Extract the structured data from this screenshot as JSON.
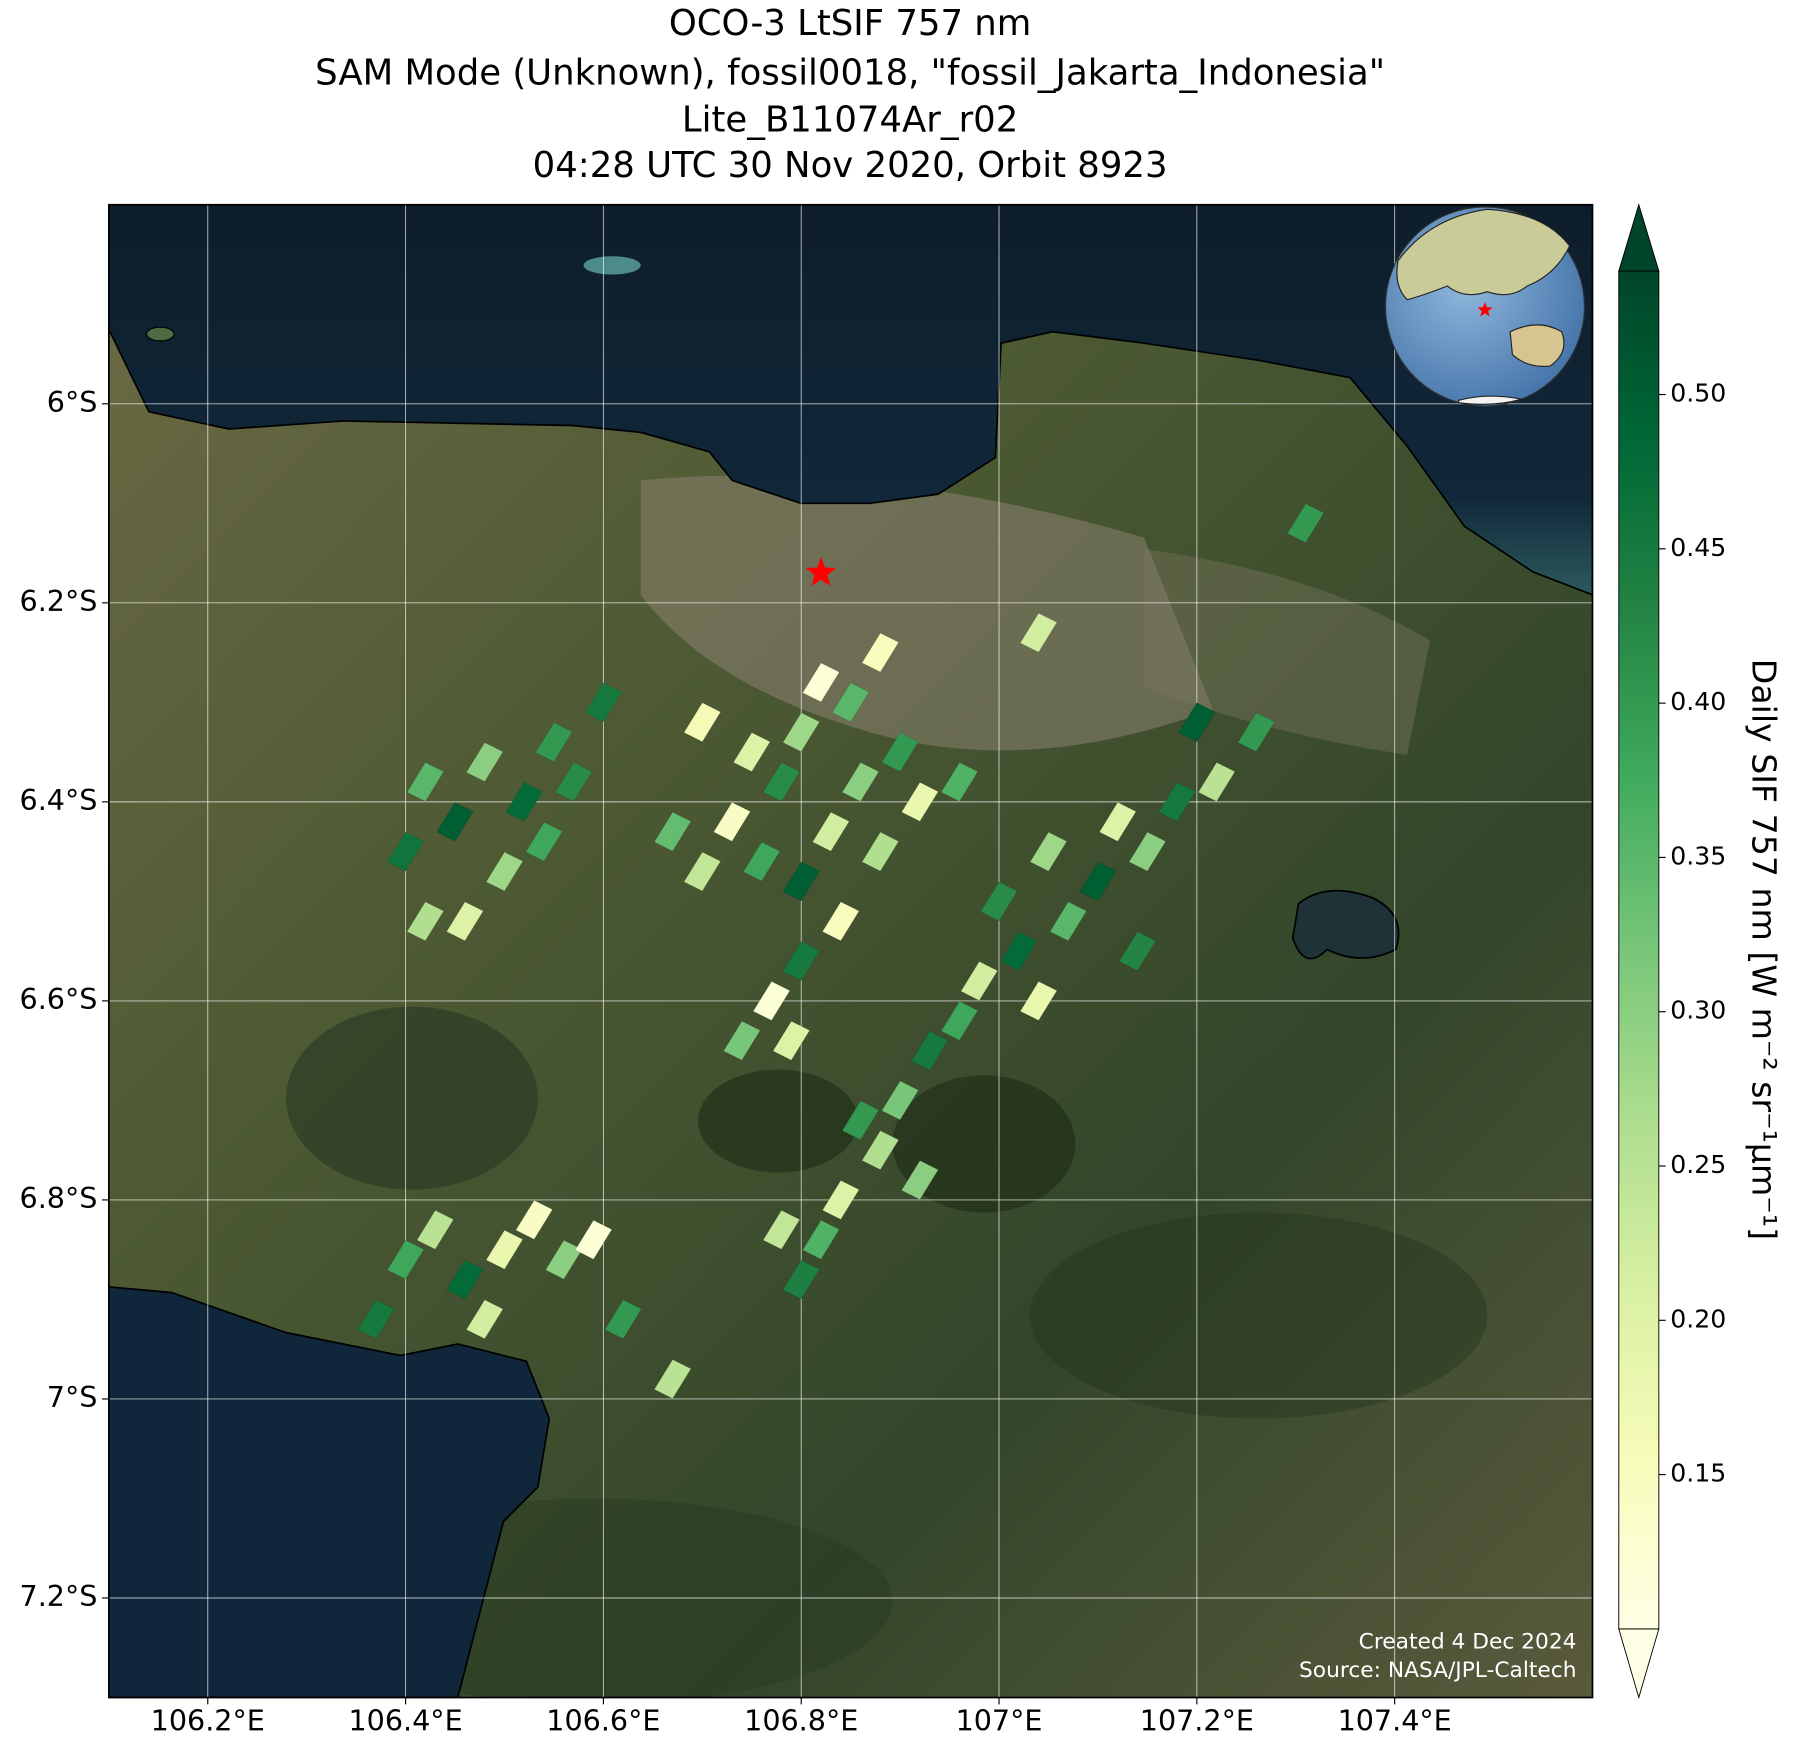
{
  "chart_data": {
    "type": "map",
    "title": [
      "OCO-3 LtSIF 757 nm",
      "SAM Mode (Unknown), fossil0018, \"fossil_Jakarta_Indonesia\"",
      "Lite_B11074Ar_r02",
      "04:28 UTC 30 Nov 2020, Orbit 8923"
    ],
    "xlim": [
      106.1,
      107.6
    ],
    "ylim": [
      -7.3,
      -5.8
    ],
    "xticks": [
      {
        "value": 106.2,
        "label": "106.2°E"
      },
      {
        "value": 106.4,
        "label": "106.4°E"
      },
      {
        "value": 106.6,
        "label": "106.6°E"
      },
      {
        "value": 106.8,
        "label": "106.8°E"
      },
      {
        "value": 107,
        "label": "107°E"
      },
      {
        "value": 107.2,
        "label": "107.2°E"
      },
      {
        "value": 107.4,
        "label": "107.4°E"
      }
    ],
    "yticks": [
      {
        "value": -6,
        "label": "6°S"
      },
      {
        "value": -6.2,
        "label": "6.2°S"
      },
      {
        "value": -6.4,
        "label": "6.4°S"
      },
      {
        "value": -6.6,
        "label": "6.6°S"
      },
      {
        "value": -6.8,
        "label": "6.8°S"
      },
      {
        "value": -7,
        "label": "7°S"
      },
      {
        "value": -7.2,
        "label": "7.2°S"
      }
    ],
    "grid": true,
    "target": {
      "lon": 106.82,
      "lat": -6.17,
      "color": "#ff0000"
    },
    "soundings": {
      "lon": [
        107.26,
        107.22,
        107.18,
        107.15,
        107.12,
        107.1,
        107.07,
        107.05,
        107.02,
        107.0,
        106.98,
        106.96,
        107.04,
        106.93,
        106.9,
        106.88,
        106.86,
        106.84,
        106.82,
        106.8,
        106.78,
        107.2,
        107.14,
        106.92,
        106.88,
        106.85,
        106.82,
        106.8,
        106.78,
        106.75,
        106.73,
        106.76,
        106.8,
        106.83,
        106.86,
        106.9,
        106.92,
        106.88,
        106.84,
        106.8,
        106.77,
        106.74,
        106.79,
        106.7,
        106.67,
        106.96,
        106.7,
        106.6,
        106.55,
        106.52,
        106.48,
        106.45,
        106.42,
        106.4,
        106.5,
        106.54,
        106.46,
        106.42,
        106.57,
        106.4,
        106.43,
        106.46,
        106.5,
        106.53,
        106.56,
        106.59,
        106.62,
        106.37,
        106.48,
        107.31,
        107.04,
        106.67
      ],
      "lat": [
        -6.33,
        -6.38,
        -6.4,
        -6.45,
        -6.42,
        -6.48,
        -6.52,
        -6.45,
        -6.55,
        -6.5,
        -6.58,
        -6.62,
        -6.6,
        -6.65,
        -6.7,
        -6.75,
        -6.72,
        -6.8,
        -6.84,
        -6.88,
        -6.83,
        -6.32,
        -6.55,
        -6.78,
        -6.25,
        -6.3,
        -6.28,
        -6.33,
        -6.38,
        -6.35,
        -6.42,
        -6.46,
        -6.48,
        -6.43,
        -6.38,
        -6.35,
        -6.4,
        -6.45,
        -6.52,
        -6.56,
        -6.6,
        -6.64,
        -6.64,
        -6.47,
        -6.43,
        -6.38,
        -6.32,
        -6.3,
        -6.34,
        -6.4,
        -6.36,
        -6.42,
        -6.38,
        -6.45,
        -6.47,
        -6.44,
        -6.52,
        -6.52,
        -6.38,
        -6.86,
        -6.83,
        -6.88,
        -6.85,
        -6.82,
        -6.86,
        -6.84,
        -6.92,
        -6.92,
        -6.92,
        -6.12,
        -6.23,
        -6.98
      ],
      "sif": [
        0.4,
        0.25,
        0.45,
        0.3,
        0.2,
        0.5,
        0.35,
        0.28,
        0.48,
        0.42,
        0.22,
        0.38,
        0.18,
        0.45,
        0.32,
        0.26,
        0.4,
        0.2,
        0.36,
        0.44,
        0.24,
        0.5,
        0.43,
        0.3,
        0.15,
        0.35,
        0.12,
        0.28,
        0.42,
        0.2,
        0.14,
        0.38,
        0.5,
        0.22,
        0.3,
        0.4,
        0.18,
        0.26,
        0.15,
        0.45,
        0.12,
        0.32,
        0.2,
        0.24,
        0.34,
        0.36,
        0.16,
        0.45,
        0.4,
        0.48,
        0.3,
        0.5,
        0.35,
        0.46,
        0.28,
        0.38,
        0.2,
        0.26,
        0.42,
        0.38,
        0.25,
        0.48,
        0.18,
        0.14,
        0.3,
        0.12,
        0.4,
        0.45,
        0.22,
        0.4,
        0.22,
        0.25
      ]
    },
    "colormap": [
      "#ffffe5",
      "#f7fcb9",
      "#d9f0a3",
      "#addd8e",
      "#78c679",
      "#41ab5d",
      "#238443",
      "#006837",
      "#004529"
    ],
    "clim": [
      0.1,
      0.54
    ],
    "colorbar_ticks": [
      0.15,
      {
        "value": 0.2,
        "label": "0.20"
      },
      0.25,
      {
        "value": 0.3,
        "label": "0.30"
      },
      0.35,
      {
        "value": 0.4,
        "label": "0.40"
      },
      0.45,
      {
        "value": 0.5,
        "label": "0.50"
      }
    ],
    "colorbar_label": "Daily SIF 757 nm [W m⁻² sr⁻¹μm⁻¹]",
    "credits": [
      "Created 4 Dec 2024",
      "Source: NASA/JPL-Caltech"
    ]
  }
}
